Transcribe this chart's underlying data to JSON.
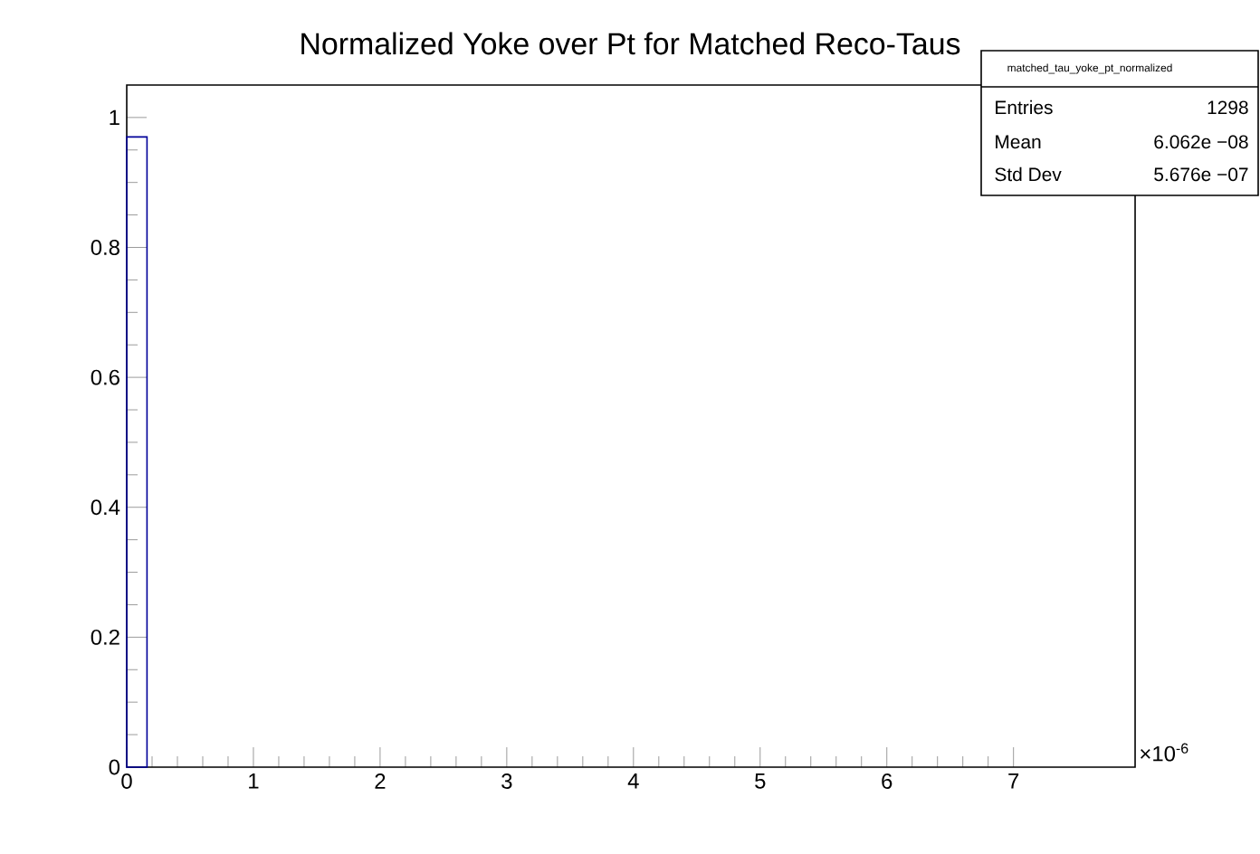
{
  "chart_data": {
    "type": "histogram",
    "title": "Normalized Yoke over Pt for Matched Reco-Taus",
    "bins": [
      0,
      0.16
    ],
    "values": [
      0.97
    ],
    "color": "#000099",
    "xlim": [
      0,
      7.96
    ],
    "ylim": [
      0,
      1.05
    ],
    "xticks": [
      0,
      1,
      2,
      3,
      4,
      5,
      6,
      7
    ],
    "yticks": [
      0,
      0.2,
      0.4,
      0.6,
      0.8,
      1
    ],
    "annotations": [
      "×10$^{-6}$",
      "matched_tau_yoke_pt_normalized",
      "Entries",
      "1298",
      "Mean",
      "6.062e −08",
      "Std Dev",
      "5.676e −07"
    ]
  }
}
